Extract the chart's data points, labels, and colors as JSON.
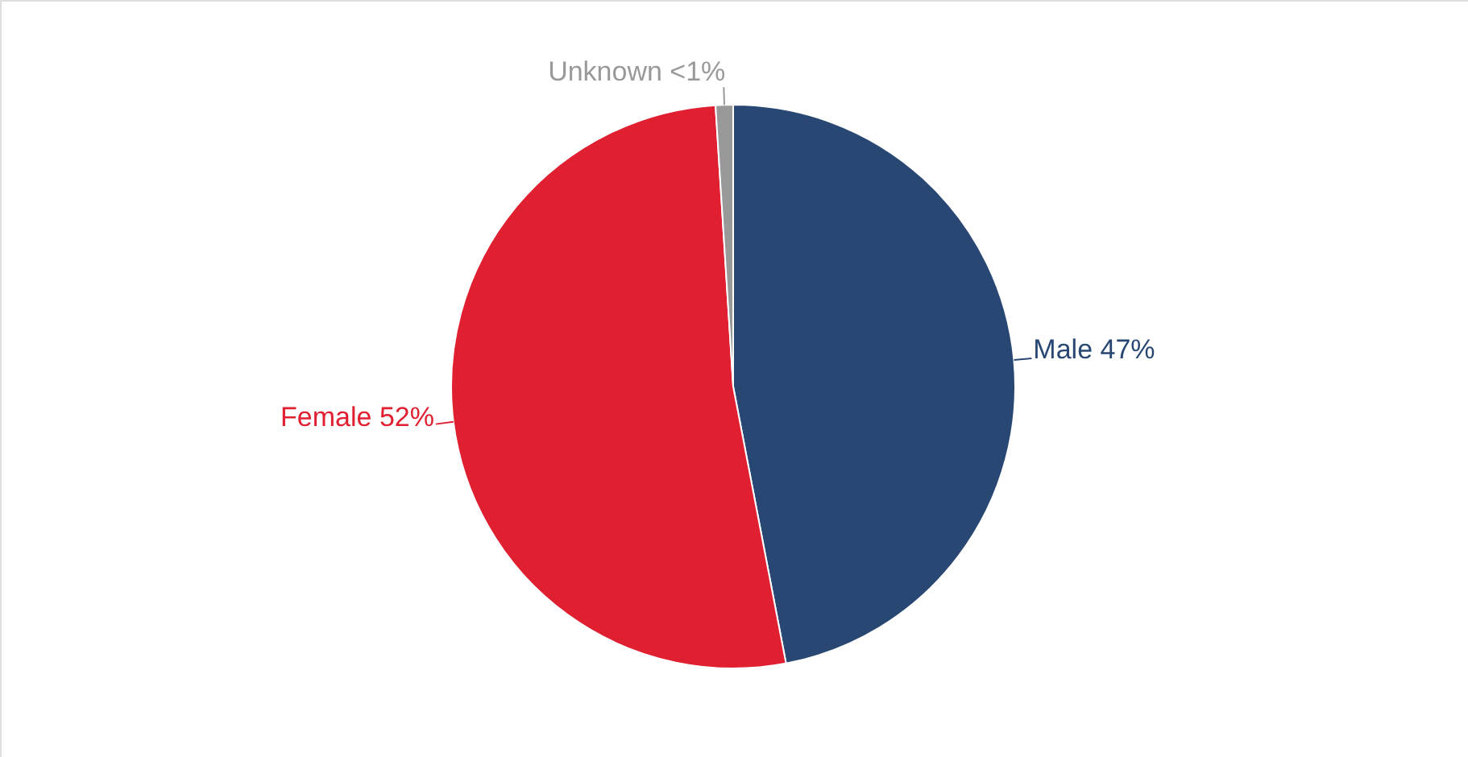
{
  "chart_data": {
    "type": "pie",
    "categories": [
      "Male",
      "Female",
      "Unknown"
    ],
    "values": [
      47,
      52,
      1
    ],
    "colors": [
      "#284873",
      "#e01f31",
      "#999999"
    ],
    "value_labels": [
      "47%",
      "52%",
      "<1%"
    ]
  }
}
